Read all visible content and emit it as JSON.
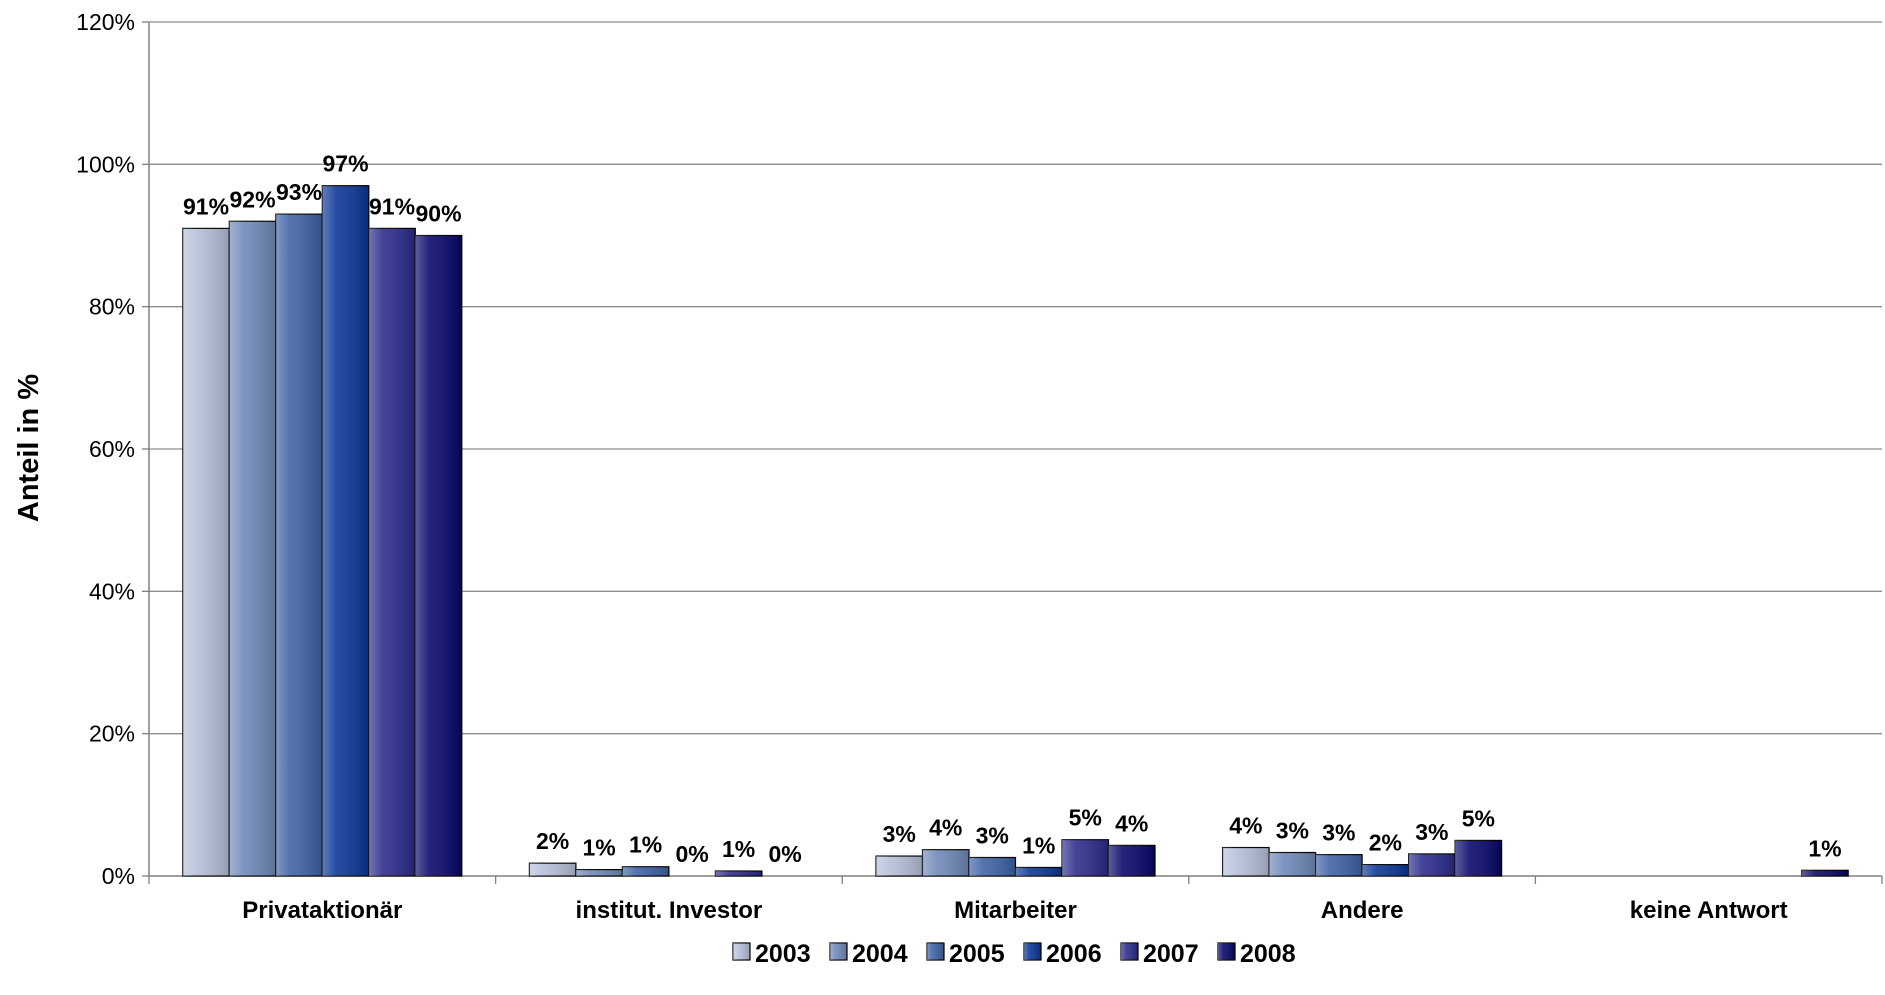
{
  "chart_data": {
    "type": "bar",
    "title": "",
    "xlabel": "",
    "ylabel": "Anteil in %",
    "ylim": [
      0,
      120
    ],
    "ytick_labels": [
      "0%",
      "20%",
      "40%",
      "60%",
      "80%",
      "100%",
      "120%"
    ],
    "yticks": [
      0,
      20,
      40,
      60,
      80,
      100,
      120
    ],
    "grid": true,
    "legend_position": "bottom",
    "categories": [
      "Privataktionär",
      "institut. Investor",
      "Mitarbeiter",
      "Andere",
      "keine Antwort"
    ],
    "series": [
      {
        "name": "2003",
        "color": "#b4bfd8",
        "values": [
          91,
          1.8,
          2.8,
          4,
          0
        ],
        "labels": [
          "91%",
          "2%",
          "3%",
          "4%",
          ""
        ]
      },
      {
        "name": "2004",
        "color": "#6f88b8",
        "values": [
          92,
          0.9,
          3.7,
          3.3,
          0
        ],
        "labels": [
          "92%",
          "1%",
          "4%",
          "3%",
          ""
        ]
      },
      {
        "name": "2005",
        "color": "#3d61a6",
        "values": [
          93,
          1.3,
          2.6,
          3,
          0
        ],
        "labels": [
          "93%",
          "1%",
          "3%",
          "3%",
          ""
        ]
      },
      {
        "name": "2006",
        "color": "#0a3596",
        "values": [
          97,
          0,
          1.2,
          1.6,
          0
        ],
        "labels": [
          "97%",
          "0%",
          "1%",
          "2%",
          ""
        ]
      },
      {
        "name": "2007",
        "color": "#2a2a8a",
        "values": [
          91,
          0.7,
          5.1,
          3.1,
          0
        ],
        "labels": [
          "91%",
          "1%",
          "5%",
          "3%",
          ""
        ]
      },
      {
        "name": "2008",
        "color": "#06066a",
        "values": [
          90,
          0,
          4.3,
          5,
          0.8
        ],
        "labels": [
          "90%",
          "0%",
          "4%",
          "5%",
          "1%"
        ]
      }
    ]
  }
}
